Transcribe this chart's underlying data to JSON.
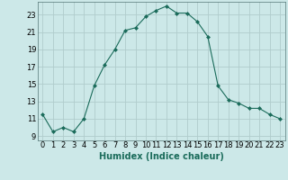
{
  "x": [
    0,
    1,
    2,
    3,
    4,
    5,
    6,
    7,
    8,
    9,
    10,
    11,
    12,
    13,
    14,
    15,
    16,
    17,
    18,
    19,
    20,
    21,
    22,
    23
  ],
  "y": [
    11.5,
    9.5,
    10.0,
    9.5,
    11.0,
    14.8,
    17.2,
    19.0,
    21.2,
    21.5,
    22.8,
    23.5,
    24.0,
    23.2,
    23.2,
    22.2,
    20.5,
    14.8,
    13.2,
    12.8,
    12.2,
    12.2,
    11.5,
    11.0
  ],
  "line_color": "#1a6b5a",
  "marker": "D",
  "marker_size": 2.0,
  "bg_color": "#cce8e8",
  "grid_color": "#b0cccc",
  "xlabel": "Humidex (Indice chaleur)",
  "xlabel_fontsize": 7,
  "ylim": [
    8.5,
    24.5
  ],
  "xlim": [
    -0.5,
    23.5
  ],
  "yticks": [
    9,
    11,
    13,
    15,
    17,
    19,
    21,
    23
  ],
  "xticks": [
    0,
    1,
    2,
    3,
    4,
    5,
    6,
    7,
    8,
    9,
    10,
    11,
    12,
    13,
    14,
    15,
    16,
    17,
    18,
    19,
    20,
    21,
    22,
    23
  ],
  "tick_fontsize": 6.0
}
